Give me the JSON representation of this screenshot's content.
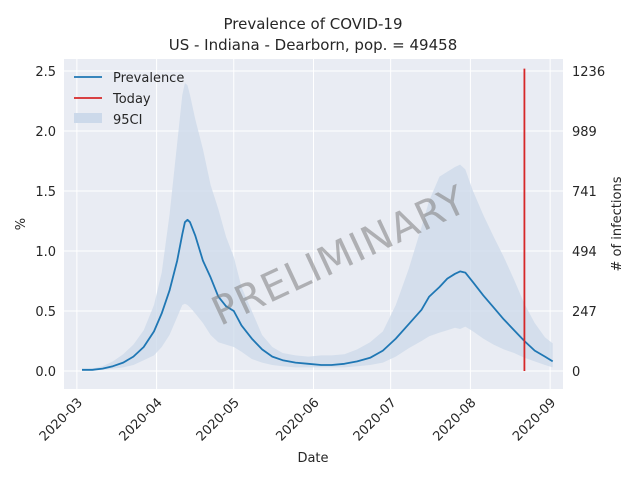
{
  "chart_data": {
    "type": "line",
    "title": "Prevalence of COVID-19",
    "subtitle": "US - Indiana - Dearborn, pop. = 49458",
    "xlabel": "Date",
    "ylabel": "%",
    "y2label": "# of infections",
    "xlim": [
      "2020-02-25",
      "2020-09-06"
    ],
    "ylim": [
      -0.15,
      2.6
    ],
    "x_ticks": [
      "2020-03",
      "2020-04",
      "2020-05",
      "2020-06",
      "2020-07",
      "2020-08",
      "2020-09"
    ],
    "y_ticks": [
      "0.0",
      "0.5",
      "1.0",
      "1.5",
      "2.0",
      "2.5"
    ],
    "y2_ticks": [
      {
        "at": 0.0,
        "label": "0"
      },
      {
        "at": 0.5,
        "label": "247"
      },
      {
        "at": 1.0,
        "label": "494"
      },
      {
        "at": 1.5,
        "label": "741"
      },
      {
        "at": 2.0,
        "label": "989"
      },
      {
        "at": 2.5,
        "label": "1236"
      }
    ],
    "grid": true,
    "legend_position": "top-left",
    "watermark": "PRELIMINARY",
    "colors": {
      "prevalence": "#1f77b4",
      "today": "#d62728",
      "band": "#ccd9ea",
      "background": "#e9ecf3",
      "grid": "#ffffff"
    },
    "series": [
      {
        "name": "Prevalence",
        "x": [
          "2020-03-03",
          "2020-03-07",
          "2020-03-11",
          "2020-03-15",
          "2020-03-19",
          "2020-03-23",
          "2020-03-27",
          "2020-03-31",
          "2020-04-03",
          "2020-04-06",
          "2020-04-09",
          "2020-04-11",
          "2020-04-12",
          "2020-04-13",
          "2020-04-14",
          "2020-04-16",
          "2020-04-19",
          "2020-04-22",
          "2020-04-25",
          "2020-04-28",
          "2020-05-01",
          "2020-05-04",
          "2020-05-08",
          "2020-05-12",
          "2020-05-16",
          "2020-05-20",
          "2020-05-25",
          "2020-05-30",
          "2020-06-04",
          "2020-06-08",
          "2020-06-13",
          "2020-06-18",
          "2020-06-23",
          "2020-06-28",
          "2020-07-03",
          "2020-07-08",
          "2020-07-13",
          "2020-07-16",
          "2020-07-20",
          "2020-07-23",
          "2020-07-26",
          "2020-07-28",
          "2020-07-30",
          "2020-08-02",
          "2020-08-06",
          "2020-08-10",
          "2020-08-14",
          "2020-08-18",
          "2020-08-22",
          "2020-08-26",
          "2020-08-30",
          "2020-09-02"
        ],
        "values": [
          0.01,
          0.01,
          0.02,
          0.04,
          0.07,
          0.12,
          0.2,
          0.33,
          0.48,
          0.67,
          0.92,
          1.14,
          1.24,
          1.26,
          1.24,
          1.13,
          0.92,
          0.78,
          0.62,
          0.54,
          0.5,
          0.38,
          0.27,
          0.18,
          0.12,
          0.09,
          0.07,
          0.06,
          0.05,
          0.05,
          0.06,
          0.08,
          0.11,
          0.17,
          0.27,
          0.39,
          0.51,
          0.62,
          0.7,
          0.77,
          0.81,
          0.83,
          0.82,
          0.74,
          0.63,
          0.53,
          0.43,
          0.34,
          0.25,
          0.17,
          0.12,
          0.08
        ]
      },
      {
        "name": "Today",
        "x": [
          "2020-08-22",
          "2020-08-22"
        ],
        "values": [
          0.0,
          2.52
        ]
      }
    ],
    "band": {
      "name": "95CI",
      "x": [
        "2020-03-03",
        "2020-03-07",
        "2020-03-11",
        "2020-03-15",
        "2020-03-19",
        "2020-03-23",
        "2020-03-27",
        "2020-03-31",
        "2020-04-03",
        "2020-04-06",
        "2020-04-09",
        "2020-04-11",
        "2020-04-12",
        "2020-04-13",
        "2020-04-14",
        "2020-04-16",
        "2020-04-19",
        "2020-04-22",
        "2020-04-25",
        "2020-04-28",
        "2020-05-01",
        "2020-05-04",
        "2020-05-08",
        "2020-05-12",
        "2020-05-16",
        "2020-05-20",
        "2020-05-25",
        "2020-05-30",
        "2020-06-04",
        "2020-06-08",
        "2020-06-13",
        "2020-06-18",
        "2020-06-23",
        "2020-06-28",
        "2020-07-03",
        "2020-07-08",
        "2020-07-13",
        "2020-07-16",
        "2020-07-20",
        "2020-07-23",
        "2020-07-26",
        "2020-07-28",
        "2020-07-30",
        "2020-08-02",
        "2020-08-06",
        "2020-08-10",
        "2020-08-14",
        "2020-08-18",
        "2020-08-22",
        "2020-08-26",
        "2020-08-30",
        "2020-09-02"
      ],
      "lower": [
        0.0,
        0.0,
        0.01,
        0.02,
        0.03,
        0.05,
        0.09,
        0.13,
        0.2,
        0.3,
        0.45,
        0.55,
        0.56,
        0.55,
        0.53,
        0.48,
        0.4,
        0.3,
        0.24,
        0.22,
        0.2,
        0.16,
        0.1,
        0.07,
        0.05,
        0.04,
        0.03,
        0.03,
        0.03,
        0.03,
        0.03,
        0.04,
        0.05,
        0.07,
        0.12,
        0.19,
        0.25,
        0.29,
        0.32,
        0.34,
        0.36,
        0.35,
        0.37,
        0.33,
        0.27,
        0.22,
        0.18,
        0.15,
        0.11,
        0.08,
        0.05,
        0.03
      ],
      "upper": [
        0.01,
        0.02,
        0.04,
        0.08,
        0.14,
        0.22,
        0.34,
        0.55,
        0.82,
        1.3,
        1.9,
        2.3,
        2.4,
        2.38,
        2.3,
        2.1,
        1.85,
        1.55,
        1.35,
        1.12,
        0.95,
        0.7,
        0.5,
        0.3,
        0.2,
        0.15,
        0.13,
        0.12,
        0.13,
        0.13,
        0.14,
        0.18,
        0.24,
        0.33,
        0.55,
        0.85,
        1.2,
        1.42,
        1.62,
        1.66,
        1.7,
        1.72,
        1.68,
        1.5,
        1.3,
        1.12,
        0.95,
        0.76,
        0.56,
        0.4,
        0.28,
        0.23
      ]
    }
  }
}
